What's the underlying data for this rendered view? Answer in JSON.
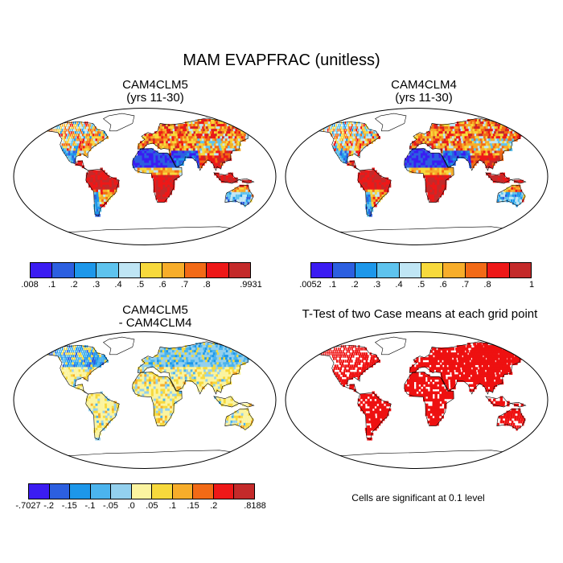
{
  "title": "MAM EVAPFRAC (unitless)",
  "panels": [
    {
      "id": "p1",
      "title_line1": "CAM4CLM5",
      "title_line2": "(yrs 11-30)",
      "colorbar": {
        "colors": [
          "#3b1cf2",
          "#2c5fe0",
          "#1d97ea",
          "#5ec3ee",
          "#bfe5f4",
          "#f7d93c",
          "#f7ad2a",
          "#f26a16",
          "#ee1818",
          "#c42a2a"
        ],
        "labels": [
          ".008",
          ".1",
          ".2",
          ".3",
          ".4",
          ".5",
          ".6",
          ".7",
          ".8",
          ".9931"
        ]
      }
    },
    {
      "id": "p2",
      "title_line1": "CAM4CLM4",
      "title_line2": "(yrs 11-30)",
      "colorbar": {
        "colors": [
          "#3b1cf2",
          "#2c5fe0",
          "#1d97ea",
          "#5ec3ee",
          "#bfe5f4",
          "#f7d93c",
          "#f7ad2a",
          "#f26a16",
          "#ee1818",
          "#c42a2a"
        ],
        "labels": [
          ".0052",
          ".1",
          ".2",
          ".3",
          ".4",
          ".5",
          ".6",
          ".7",
          ".8",
          "1"
        ]
      }
    },
    {
      "id": "p3",
      "title_line1": "CAM4CLM5",
      "title_line2": "- CAM4CLM4",
      "colorbar": {
        "colors": [
          "#3b1cf2",
          "#2c5fe0",
          "#1d97ea",
          "#4bb4ee",
          "#93d0ee",
          "#fbf4a0",
          "#f7d93c",
          "#f7ad2a",
          "#f26a16",
          "#ee1818",
          "#c42a2a"
        ],
        "labels": [
          "-.7027",
          "-.2",
          "-.15",
          "-.1",
          "-.05",
          ".0",
          ".05",
          ".1",
          ".15",
          ".2",
          ".8188"
        ]
      }
    },
    {
      "id": "p4",
      "title_line1": "T-Test of two Case means at each grid point",
      "note": "Cells are significant at 0.1 level"
    }
  ],
  "chart_data": {
    "type": "map",
    "title": "MAM EVAPFRAC (unitless)",
    "maps": [
      {
        "name": "CAM4CLM5 (yrs 11-30)",
        "variable": "EVAPFRAC",
        "season": "MAM",
        "range": [
          0.008,
          0.9931
        ],
        "levels": [
          0.1,
          0.2,
          0.3,
          0.4,
          0.5,
          0.6,
          0.7,
          0.8
        ],
        "projection": "Robinson"
      },
      {
        "name": "CAM4CLM4 (yrs 11-30)",
        "variable": "EVAPFRAC",
        "season": "MAM",
        "range": [
          0.0052,
          1
        ],
        "levels": [
          0.1,
          0.2,
          0.3,
          0.4,
          0.5,
          0.6,
          0.7,
          0.8
        ],
        "projection": "Robinson"
      },
      {
        "name": "CAM4CLM5 - CAM4CLM4",
        "variable": "EVAPFRAC difference",
        "season": "MAM",
        "range": [
          -0.7027,
          0.8188
        ],
        "levels": [
          -0.2,
          -0.15,
          -0.1,
          -0.05,
          0.0,
          0.05,
          0.1,
          0.15,
          0.2
        ],
        "projection": "Robinson"
      },
      {
        "name": "T-Test of two Case means at each grid point",
        "significance_level": 0.1,
        "significant_color": "#ee1111",
        "projection": "Robinson"
      }
    ]
  }
}
